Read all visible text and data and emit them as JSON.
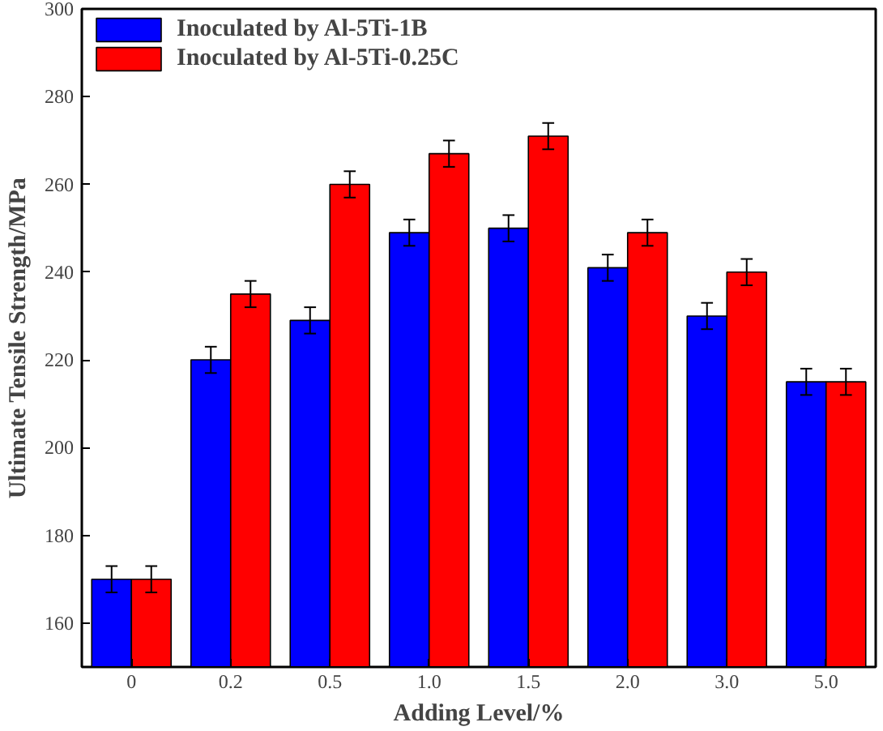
{
  "chart_data": {
    "type": "bar",
    "xlabel": "Adding Level/%",
    "ylabel": "Ultimate Tensile Strength/MPa",
    "categories": [
      "0",
      "0.2",
      "0.5",
      "1.0",
      "1.5",
      "2.0",
      "3.0",
      "5.0"
    ],
    "series": [
      {
        "name": "Inoculated by Al-5Ti-1B",
        "color": "#0000ff",
        "values": [
          170,
          220,
          229,
          249,
          250,
          241,
          230,
          215
        ],
        "errors": [
          3,
          3,
          3,
          3,
          3,
          3,
          3,
          3
        ]
      },
      {
        "name": "Inoculated by Al-5Ti-0.25C",
        "color": "#ff0000",
        "values": [
          170,
          235,
          260,
          267,
          271,
          249,
          240,
          215
        ],
        "errors": [
          3,
          3,
          3,
          3,
          3,
          3,
          3,
          3
        ]
      }
    ],
    "ylim": [
      150,
      300
    ],
    "yticks": [
      160,
      180,
      200,
      220,
      240,
      260,
      280,
      300
    ],
    "grid": false,
    "legend": "top left"
  }
}
